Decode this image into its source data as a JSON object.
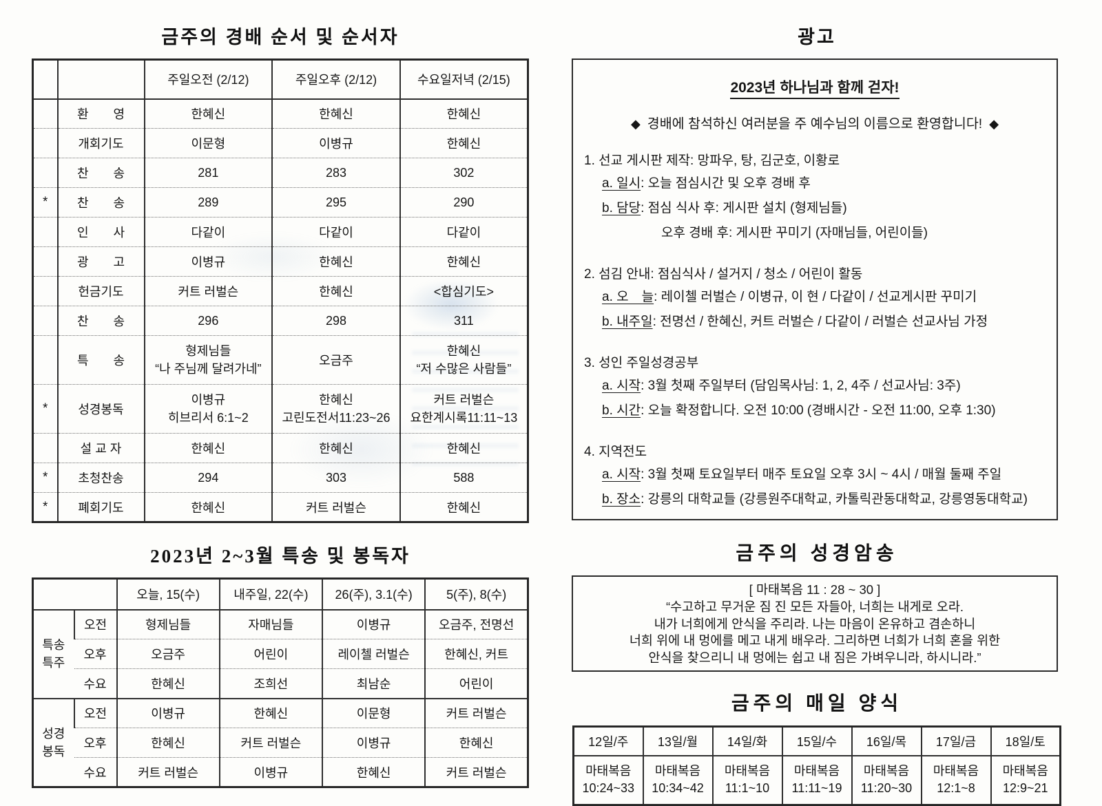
{
  "left": {
    "worship": {
      "title": "금주의 경배 순서 및 순서자",
      "headers": [
        "주일오전 (2/12)",
        "주일오후 (2/12)",
        "수요일저녁 (2/15)"
      ],
      "rows": [
        {
          "star": "",
          "label": "환　　영",
          "cells": [
            "한혜신",
            "한혜신",
            "한혜신"
          ]
        },
        {
          "star": "",
          "label": "개회기도",
          "cells": [
            "이문형",
            "이병규",
            "한혜신"
          ]
        },
        {
          "star": "",
          "label": "찬　　송",
          "cells": [
            "281",
            "283",
            "302"
          ]
        },
        {
          "star": "*",
          "label": "찬　　송",
          "cells": [
            "289",
            "295",
            "290"
          ]
        },
        {
          "star": "",
          "label": "인　　사",
          "cells": [
            "다같이",
            "다같이",
            "다같이"
          ]
        },
        {
          "star": "",
          "label": "광　　고",
          "cells": [
            "이병규",
            "한혜신",
            "한혜신"
          ]
        },
        {
          "star": "",
          "label": "헌금기도",
          "cells": [
            "커트 러벌슨",
            "한혜신",
            "<합심기도>"
          ]
        },
        {
          "star": "",
          "label": "찬　　송",
          "cells": [
            "296",
            "298",
            "311"
          ]
        },
        {
          "star": "",
          "label": "특　　송",
          "cells": [
            [
              "형제님들",
              "“나 주님께 달려가네”"
            ],
            "오금주",
            [
              "한혜신",
              "“저 수많은 사람들”"
            ]
          ]
        },
        {
          "star": "*",
          "label": "성경봉독",
          "cells": [
            [
              "이병규",
              "히브리서 6:1~2"
            ],
            [
              "한혜신",
              "고린도전서11:23~26"
            ],
            [
              "커트 러벌슨",
              "요한계시록11:11~13"
            ]
          ]
        },
        {
          "star": "",
          "label": "설 교 자",
          "cells": [
            "한혜신",
            "한혜신",
            "한혜신"
          ]
        },
        {
          "star": "*",
          "label": "초청찬송",
          "cells": [
            "294",
            "303",
            "588"
          ]
        },
        {
          "star": "*",
          "label": "폐회기도",
          "cells": [
            "한혜신",
            "커트 러벌슨",
            "한혜신"
          ]
        }
      ]
    },
    "special": {
      "title": "2023년 2~3월 특송 및 봉독자",
      "headers": [
        "오늘, 15(수)",
        "내주일, 22(수)",
        "26(주), 3.1(수)",
        "5(주), 8(수)"
      ],
      "groups": [
        {
          "label": [
            "특송",
            "특주"
          ],
          "rows": [
            {
              "sub": "오전",
              "cells": [
                "형제님들",
                "자매님들",
                "이병규",
                "오금주, 전명선"
              ]
            },
            {
              "sub": "오후",
              "cells": [
                "오금주",
                "어린이",
                "레이첼 러벌슨",
                "한혜신, 커트"
              ]
            },
            {
              "sub": "수요",
              "cells": [
                "한혜신",
                "조희선",
                "최남순",
                "어린이"
              ]
            }
          ]
        },
        {
          "label": [
            "성경",
            "봉독"
          ],
          "rows": [
            {
              "sub": "오전",
              "cells": [
                "이병규",
                "한혜신",
                "이문형",
                "커트 러벌슨"
              ]
            },
            {
              "sub": "오후",
              "cells": [
                "한혜신",
                "커트 러벌슨",
                "이병규",
                "한혜신"
              ]
            },
            {
              "sub": "수요",
              "cells": [
                "커트 러벌슨",
                "이병규",
                "한혜신",
                "커트 러벌슨"
              ]
            }
          ]
        }
      ]
    }
  },
  "right": {
    "ads": {
      "title": "광고",
      "banner_title": "2023년 하나님과 함께 걷자!",
      "banner_sub": "경배에 참석하신 여러분을 주 예수님의 이름으로 환영합니다!",
      "diamond": "◆",
      "items": [
        {
          "title": "1. 선교 게시판 제작: 망파우, 탕, 김군호, 이황로",
          "lines": [
            {
              "label": "a. 일시",
              "text": ": 오늘 점심시간 및 오후 경배 후"
            },
            {
              "label": "b. 담당",
              "text": ": 점심 식사 후: 게시판 설치 (형제님들)"
            },
            {
              "label": "",
              "text": "오후 경배 후: 게시판 꾸미기 (자매님들, 어린이들)",
              "indent": true
            }
          ]
        },
        {
          "title": "2. 섬김 안내: 점심식사 / 설거지 / 청소 / 어린이 활동",
          "lines": [
            {
              "label": "a. 오　늘",
              "text": ": 레이첼 러벌슨 / 이병규, 이 현 / 다같이 / 선교게시판 꾸미기"
            },
            {
              "label": "b. 내주일",
              "text": ": 전명선 / 한혜신, 커트 러벌슨 / 다같이 / 러벌슨 선교사님 가정"
            }
          ]
        },
        {
          "title": "3. 성인 주일성경공부",
          "lines": [
            {
              "label": "a. 시작",
              "text": ": 3월 첫째 주일부터 (담임목사님: 1, 2, 4주 / 선교사님: 3주)"
            },
            {
              "label": "b. 시간",
              "text": ": 오늘 확정합니다. 오전 10:00 (경배시간 - 오전 11:00, 오후 1:30)"
            }
          ]
        },
        {
          "title": "4. 지역전도",
          "lines": [
            {
              "label": "a. 시작",
              "text": ": 3월 첫째 토요일부터 매주 토요일 오후 3시 ~ 4시 / 매월 둘째 주일"
            },
            {
              "label": "b. 장소",
              "text": ": 강릉의 대학교들 (강릉원주대학교, 카톨릭관동대학교, 강릉영동대학교)"
            }
          ]
        }
      ]
    },
    "memory": {
      "title": "금주의 성경암송",
      "reference": "[ 마태복음 11 : 28 ~ 30 ]",
      "lines": [
        "“수고하고 무거운 짐 진 모든 자들아, 너희는 내게로 오라.",
        "내가 너희에게 안식을 주리라. 나는 마음이 온유하고 겸손하니",
        "너희 위에 내 멍에를 메고 내게 배우라. 그리하면 너희가 너희 혼을 위한",
        "안식을 찾으리니 내 멍에는 쉽고 내 짐은 가벼우니라, 하시니라.”"
      ]
    },
    "daily": {
      "title": "금주의 매일 양식",
      "headers": [
        "12일/주",
        "13일/월",
        "14일/화",
        "15일/수",
        "16일/목",
        "17일/금",
        "18일/토"
      ],
      "cells": [
        [
          "마태복음",
          "10:24~33"
        ],
        [
          "마태복음",
          "10:34~42"
        ],
        [
          "마태복음",
          "11:1~10"
        ],
        [
          "마태복음",
          "11:11~19"
        ],
        [
          "마태복음",
          "11:20~30"
        ],
        [
          "마태복음",
          "12:1~8"
        ],
        [
          "마태복음",
          "12:9~21"
        ]
      ]
    }
  }
}
